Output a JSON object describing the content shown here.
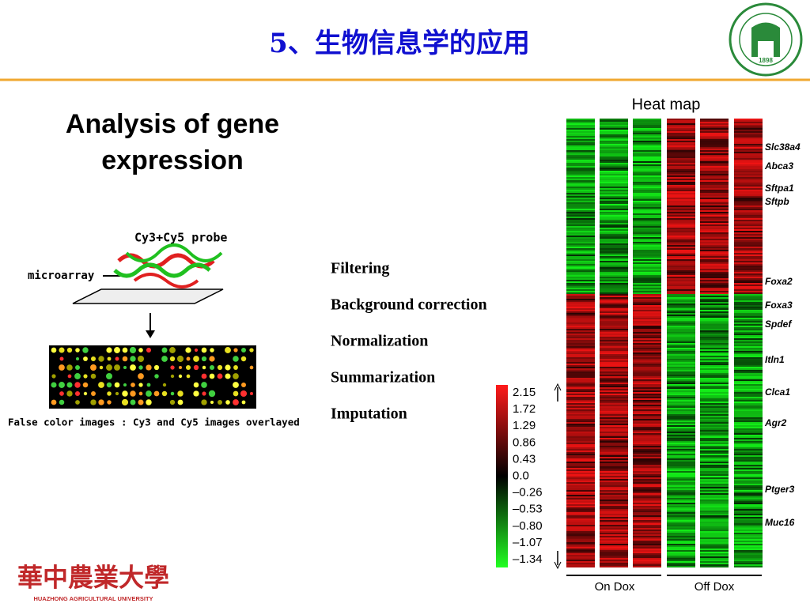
{
  "title": "5、生物信息学的应用",
  "heading": "Analysis of gene expression",
  "figure": {
    "probe_label": "Cy3+Cy5 probe",
    "microarray_label": "microarray",
    "caption": "False color images : Cy3 and Cy5 images overlayed"
  },
  "steps": [
    "Filtering",
    "Background correction",
    "Normalization",
    "Summarization",
    "Imputation"
  ],
  "heatmap": {
    "title": "Heat map",
    "genes": [
      "Slc38a4",
      "Abca3",
      "Sftpa1",
      "Sftpb",
      "Foxa2",
      "Foxa3",
      "Spdef",
      "Itln1",
      "Clca1",
      "Agr2",
      "Ptger3",
      "Muc16"
    ],
    "scale": [
      "2.15",
      "1.72",
      "1.29",
      "0.86",
      "0.43",
      "0.0",
      "–0.26",
      "–0.53",
      "–0.80",
      "–1.07",
      "–1.34"
    ],
    "groups": [
      "On Dox",
      "Off Dox"
    ]
  },
  "logo": {
    "year": "1898"
  },
  "footer": {
    "university_cn": "華中農業大學",
    "university_en": "HUAZHONG AGRICULTURAL UNIVERSITY"
  }
}
